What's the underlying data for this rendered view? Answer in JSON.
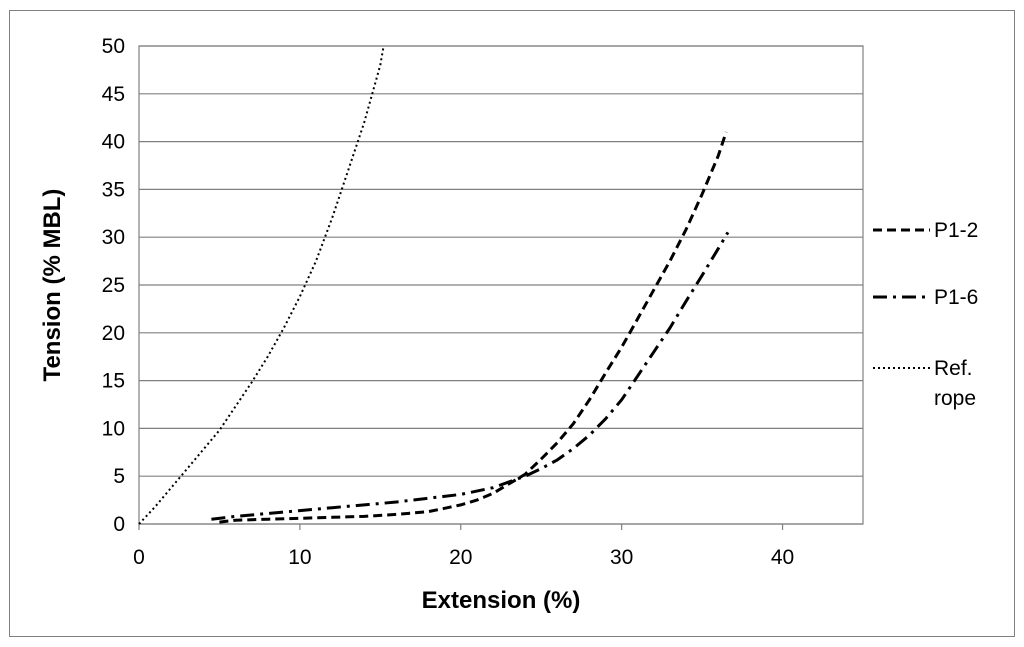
{
  "chart_data": {
    "type": "line",
    "title": "",
    "xlabel": "Extension (%)",
    "ylabel": "Tension (% MBL)",
    "xlim": [
      0,
      45
    ],
    "ylim": [
      0,
      50
    ],
    "xticks": [
      0,
      10,
      20,
      30,
      40
    ],
    "yticks": [
      0,
      5,
      10,
      15,
      20,
      25,
      30,
      35,
      40,
      45,
      50
    ],
    "grid": "horizontal",
    "legend_position": "right",
    "series": [
      {
        "name": "P1-2",
        "style": "dashed",
        "color": "#000000",
        "x": [
          5.0,
          6,
          8,
          10,
          12,
          14,
          16,
          18,
          20,
          21,
          22,
          23,
          24,
          25,
          26,
          27,
          28,
          29,
          30,
          31,
          32,
          33,
          34,
          35,
          36,
          36.5
        ],
        "y": [
          0.2,
          0.4,
          0.5,
          0.6,
          0.7,
          0.8,
          1.0,
          1.3,
          2.0,
          2.5,
          3.2,
          4.2,
          5.2,
          6.8,
          8.5,
          10.5,
          13,
          15.8,
          18.5,
          21.5,
          24.5,
          27.5,
          30.8,
          34.5,
          38.5,
          41
        ]
      },
      {
        "name": "P1-6",
        "style": "dash-dot",
        "color": "#000000",
        "x": [
          4.5,
          6,
          8,
          10,
          12,
          14,
          16,
          18,
          20,
          22,
          23,
          24,
          25,
          26,
          27,
          28,
          29,
          30,
          31,
          32,
          33,
          34,
          35,
          36,
          36.6
        ],
        "y": [
          0.5,
          0.8,
          1.1,
          1.4,
          1.7,
          2.0,
          2.3,
          2.7,
          3.1,
          3.8,
          4.4,
          5.0,
          5.8,
          6.7,
          7.9,
          9.3,
          11,
          13,
          15.5,
          18,
          20.5,
          23.3,
          26,
          28.8,
          30.5
        ]
      },
      {
        "name": "Ref. rope",
        "style": "dotted",
        "color": "#000000",
        "x": [
          0,
          1,
          2,
          3,
          4,
          5,
          6,
          7,
          8,
          9,
          10,
          11,
          12,
          13,
          14,
          15,
          15.2
        ],
        "y": [
          0,
          1.8,
          3.8,
          5.8,
          7.8,
          9.8,
          12.3,
          14.8,
          17.5,
          20.5,
          23.8,
          27.5,
          32,
          37,
          42,
          48,
          50
        ]
      }
    ]
  }
}
